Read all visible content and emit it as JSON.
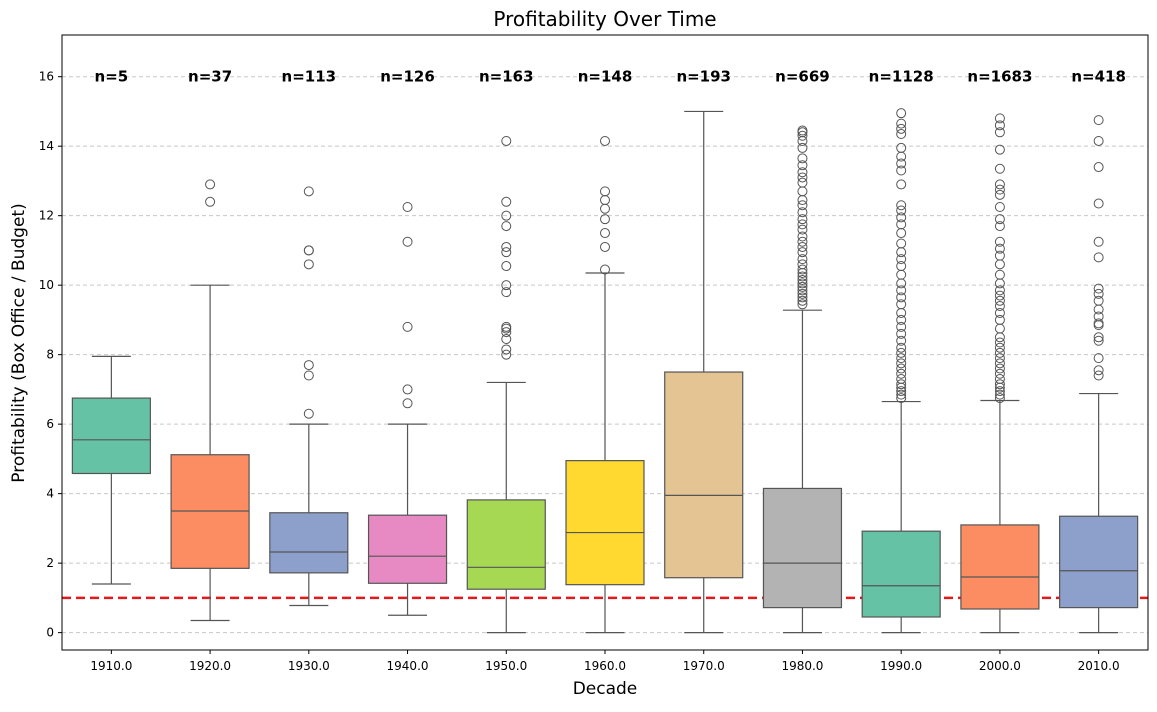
{
  "chart_data": {
    "type": "box",
    "title": "Profitability Over Time",
    "xlabel": "Decade",
    "ylabel": "Profitability (Box Office / Budget)",
    "ylim": [
      -0.5,
      17.2
    ],
    "yticks": [
      0,
      2,
      4,
      6,
      8,
      10,
      12,
      14,
      16
    ],
    "grid": "y, dashed",
    "reference_line": {
      "y": 1.0,
      "color": "#e31a1c",
      "style": "dashed"
    },
    "categories": [
      "1910.0",
      "1920.0",
      "1930.0",
      "1940.0",
      "1950.0",
      "1960.0",
      "1970.0",
      "1980.0",
      "1990.0",
      "2000.0",
      "2010.0"
    ],
    "counts": [
      "n=5",
      "n=37",
      "n=113",
      "n=126",
      "n=163",
      "n=148",
      "n=193",
      "n=669",
      "n=1128",
      "n=1683",
      "n=418"
    ],
    "boxes": [
      {
        "decade": "1910.0",
        "color": "#66c2a5",
        "whisker_low": 1.4,
        "q1": 4.58,
        "median": 5.55,
        "q3": 6.75,
        "whisker_high": 7.95,
        "outliers": []
      },
      {
        "decade": "1920.0",
        "color": "#fc8d62",
        "whisker_low": 0.35,
        "q1": 1.85,
        "median": 3.5,
        "q3": 5.12,
        "whisker_high": 10.0,
        "outliers": [
          12.4,
          12.9
        ]
      },
      {
        "decade": "1930.0",
        "color": "#8da0cb",
        "whisker_low": 0.78,
        "q1": 1.72,
        "median": 2.32,
        "q3": 3.45,
        "whisker_high": 6.0,
        "outliers": [
          6.3,
          7.4,
          7.7,
          10.6,
          11.0,
          11.0,
          12.7
        ]
      },
      {
        "decade": "1940.0",
        "color": "#e78ac3",
        "whisker_low": 0.5,
        "q1": 1.42,
        "median": 2.2,
        "q3": 3.38,
        "whisker_high": 6.0,
        "outliers": [
          6.6,
          7.0,
          8.8,
          11.25,
          12.25
        ]
      },
      {
        "decade": "1950.0",
        "color": "#a6d854",
        "whisker_low": 0.0,
        "q1": 1.25,
        "median": 1.88,
        "q3": 3.82,
        "whisker_high": 7.2,
        "outliers": [
          8.0,
          8.15,
          8.45,
          8.65,
          8.75,
          8.8,
          9.8,
          10.0,
          10.55,
          10.95,
          11.1,
          11.7,
          12.0,
          12.4,
          14.15
        ]
      },
      {
        "decade": "1960.0",
        "color": "#ffd92f",
        "whisker_low": 0.0,
        "q1": 1.38,
        "median": 2.88,
        "q3": 4.95,
        "whisker_high": 10.35,
        "outliers": [
          10.45,
          11.1,
          11.5,
          11.9,
          12.2,
          12.45,
          12.7,
          14.15
        ]
      },
      {
        "decade": "1970.0",
        "color": "#e5c494",
        "whisker_low": 0.0,
        "q1": 1.58,
        "median": 3.95,
        "q3": 7.5,
        "whisker_high": 15.0,
        "outliers": []
      },
      {
        "decade": "1980.0",
        "color": "#b3b3b3",
        "whisker_low": 0.0,
        "q1": 0.72,
        "median": 2.0,
        "q3": 4.15,
        "whisker_high": 9.28,
        "outliers": [
          9.45,
          9.55,
          9.65,
          9.75,
          9.85,
          9.95,
          10.05,
          10.15,
          10.25,
          10.35,
          10.45,
          10.6,
          10.75,
          10.95,
          11.1,
          11.25,
          11.4,
          11.6,
          11.75,
          11.9,
          12.1,
          12.3,
          12.45,
          12.7,
          12.95,
          13.1,
          13.25,
          13.45,
          13.65,
          13.95,
          14.15,
          14.3,
          14.4,
          14.45
        ]
      },
      {
        "decade": "1990.0",
        "color": "#66c2a5",
        "whisker_low": 0.0,
        "q1": 0.45,
        "median": 1.35,
        "q3": 2.92,
        "whisker_high": 6.65,
        "outliers": [
          6.75,
          6.85,
          6.95,
          7.05,
          7.15,
          7.3,
          7.45,
          7.6,
          7.75,
          7.9,
          8.05,
          8.2,
          8.4,
          8.6,
          8.8,
          9.0,
          9.2,
          9.45,
          9.65,
          9.85,
          10.05,
          10.3,
          10.55,
          10.75,
          10.95,
          11.2,
          11.5,
          11.75,
          11.95,
          12.15,
          12.3,
          12.9,
          13.3,
          13.5,
          13.7,
          13.95,
          14.35,
          14.5,
          14.65,
          14.95
        ]
      },
      {
        "decade": "2000.0",
        "color": "#fc8d62",
        "whisker_low": 0.0,
        "q1": 0.68,
        "median": 1.6,
        "q3": 3.1,
        "whisker_high": 6.68,
        "outliers": [
          6.75,
          6.85,
          6.95,
          7.05,
          7.15,
          7.3,
          7.45,
          7.6,
          7.75,
          7.9,
          8.05,
          8.2,
          8.35,
          8.5,
          8.75,
          9.0,
          9.2,
          9.4,
          9.55,
          9.7,
          9.85,
          10.05,
          10.3,
          10.6,
          10.85,
          11.05,
          11.25,
          11.7,
          11.9,
          12.25,
          12.6,
          12.75,
          12.9,
          13.35,
          13.9,
          14.4,
          14.6,
          14.8
        ]
      },
      {
        "decade": "2010.0",
        "color": "#8da0cb",
        "whisker_low": 0.0,
        "q1": 0.72,
        "median": 1.78,
        "q3": 3.35,
        "whisker_high": 6.88,
        "outliers": [
          7.4,
          7.55,
          7.9,
          8.4,
          8.5,
          8.85,
          8.9,
          9.1,
          9.3,
          9.55,
          9.75,
          9.9,
          10.8,
          11.25,
          12.35,
          13.4,
          14.15,
          14.75
        ]
      }
    ]
  }
}
